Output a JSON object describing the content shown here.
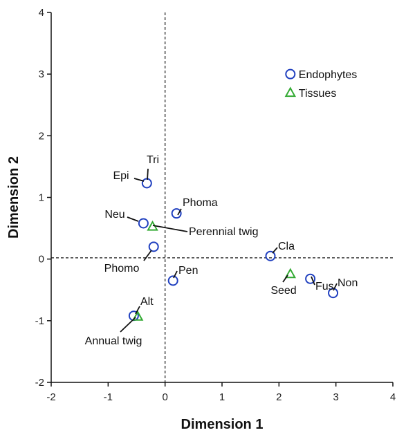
{
  "chart_data": {
    "type": "scatter",
    "xlabel": "Dimension 1",
    "ylabel": "Dimension 2",
    "xlim": [
      -2,
      4
    ],
    "ylim": [
      -2,
      4
    ],
    "xticks": [
      "-2",
      "-1",
      "0",
      "1",
      "2",
      "3",
      "4"
    ],
    "yticks": [
      "-2",
      "-1",
      "0",
      "1",
      "2",
      "3",
      "4"
    ],
    "reference_lines": {
      "x": 0,
      "y": 0.02
    },
    "colors": {
      "endophytes": "#1f3fbf",
      "tissues": "#33aa33"
    },
    "legend": {
      "position": "top-right",
      "entries": [
        {
          "name": "Endophytes",
          "marker": "circle"
        },
        {
          "name": "Tissues",
          "marker": "triangle"
        }
      ]
    },
    "series": [
      {
        "name": "Endophytes",
        "marker": "circle",
        "points": [
          {
            "label": "Tri",
            "x": -0.32,
            "y": 1.23
          },
          {
            "label": "Epi",
            "x": -0.32,
            "y": 1.23
          },
          {
            "label": "Phoma",
            "x": 0.2,
            "y": 0.74
          },
          {
            "label": "Neu",
            "x": -0.38,
            "y": 0.58
          },
          {
            "label": "Phomo",
            "x": -0.2,
            "y": 0.2
          },
          {
            "label": "Pen",
            "x": 0.14,
            "y": -0.35
          },
          {
            "label": "Alt",
            "x": -0.55,
            "y": -0.92
          },
          {
            "label": "Cla",
            "x": 1.85,
            "y": 0.05
          },
          {
            "label": "Fus",
            "x": 2.55,
            "y": -0.32
          },
          {
            "label": "Non",
            "x": 2.95,
            "y": -0.55
          }
        ]
      },
      {
        "name": "Tissues",
        "marker": "triangle",
        "points": [
          {
            "label": "Perennial twig",
            "x": -0.22,
            "y": 0.53
          },
          {
            "label": "Seed",
            "x": 2.2,
            "y": -0.24
          },
          {
            "label": "Annual twig",
            "x": -0.48,
            "y": -0.93
          }
        ]
      }
    ]
  }
}
